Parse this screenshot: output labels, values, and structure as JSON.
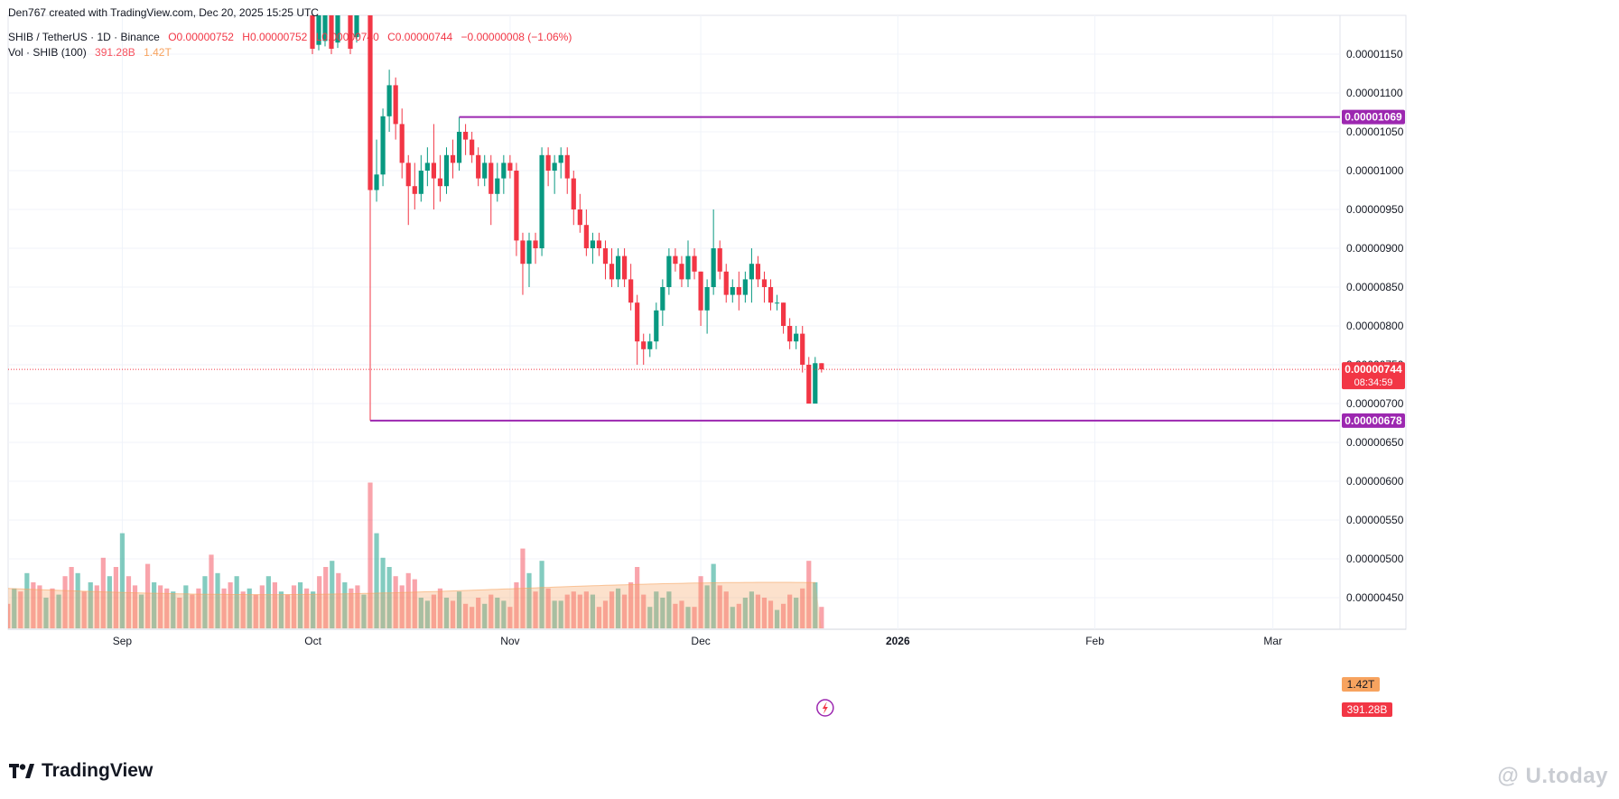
{
  "header": {
    "credit": "Den767 created with TradingView.com, Dec 20, 2025 15:25 UTC",
    "symbol": "SHIB / TetherUS · 1D · Binance",
    "open": "O0.00000752",
    "high": "H0.00000752",
    "low": "L0.00000740",
    "close": "C0.00000744",
    "change": "−0.00000008 (−1.06%)",
    "vol_label": "Vol · SHIB (100)",
    "vol_value": "391.28B",
    "vol_ma": "1.42T"
  },
  "branding": {
    "logo_text": "TradingView",
    "watermark": "@ U.today"
  },
  "colors": {
    "up": "#089981",
    "down": "#f23645",
    "level": "#9c27b0",
    "grid": "#f0f3fa",
    "vol_ma": "#f7a35f"
  },
  "chart_data": {
    "type": "candlestick",
    "symbol": "SHIB/USDT",
    "interval": "1D",
    "y_axis": {
      "min": 4.5e-06,
      "max": 1.15e-05,
      "ticks": [
        "0.00000450",
        "0.00000500",
        "0.00000550",
        "0.00000600",
        "0.00000650",
        "0.00000700",
        "0.00000750",
        "0.00000800",
        "0.00000850",
        "0.00000900",
        "0.00000950",
        "0.00001000",
        "0.00001050",
        "0.00001100",
        "0.00001150"
      ],
      "scale": "linear",
      "position": "right"
    },
    "x_axis": {
      "labels": [
        {
          "label": "Sep",
          "date": "2025-09-01"
        },
        {
          "label": "Oct",
          "date": "2025-10-01"
        },
        {
          "label": "Nov",
          "date": "2025-11-01"
        },
        {
          "label": "Dec",
          "date": "2025-12-01"
        },
        {
          "label": "2026",
          "date": "2026-01-01"
        },
        {
          "label": "Feb",
          "date": "2026-02-01"
        },
        {
          "label": "Mar",
          "date": "2026-03-01"
        }
      ]
    },
    "horizontal_levels": [
      {
        "value": 1.069e-05,
        "label": "0.00001069",
        "from_date": "2025-10-24"
      },
      {
        "value": 6.78e-06,
        "label": "0.00000678",
        "from_date": "2025-10-10"
      }
    ],
    "last_price": {
      "value": 7.44e-06,
      "label": "0.00000744",
      "countdown": "08:34:59"
    },
    "volume_badges": {
      "ma": "1.42T",
      "volume": "391.28B"
    },
    "candles": [
      {
        "date": "2025-10-10",
        "o": 1.24e-05,
        "h": 1.25e-05,
        "l": 6.78e-06,
        "c": 9.75e-06,
        "v": 0.95
      },
      {
        "date": "2025-10-11",
        "o": 9.75e-06,
        "h": 1.04e-05,
        "l": 9.6e-06,
        "c": 9.95e-06,
        "v": 0.62
      },
      {
        "date": "2025-10-12",
        "o": 9.95e-06,
        "h": 1.08e-05,
        "l": 9.8e-06,
        "c": 1.07e-05,
        "v": 0.46
      },
      {
        "date": "2025-10-13",
        "o": 1.07e-05,
        "h": 1.13e-05,
        "l": 1.05e-05,
        "c": 1.11e-05,
        "v": 0.4
      },
      {
        "date": "2025-10-14",
        "o": 1.11e-05,
        "h": 1.12e-05,
        "l": 1.04e-05,
        "c": 1.06e-05,
        "v": 0.34
      },
      {
        "date": "2025-10-15",
        "o": 1.06e-05,
        "h": 1.08e-05,
        "l": 9.9e-06,
        "c": 1.01e-05,
        "v": 0.28
      },
      {
        "date": "2025-10-16",
        "o": 1.01e-05,
        "h": 1.02e-05,
        "l": 9.3e-06,
        "c": 9.8e-06,
        "v": 0.36
      },
      {
        "date": "2025-10-17",
        "o": 9.8e-06,
        "h": 1.01e-05,
        "l": 9.5e-06,
        "c": 9.7e-06,
        "v": 0.32
      },
      {
        "date": "2025-10-18",
        "o": 9.7e-06,
        "h": 1.02e-05,
        "l": 9.6e-06,
        "c": 1e-05,
        "v": 0.2
      },
      {
        "date": "2025-10-19",
        "o": 1e-05,
        "h": 1.03e-05,
        "l": 9.8e-06,
        "c": 1.01e-05,
        "v": 0.18
      },
      {
        "date": "2025-10-20",
        "o": 1.01e-05,
        "h": 1.06e-05,
        "l": 9.5e-06,
        "c": 9.9e-06,
        "v": 0.22
      },
      {
        "date": "2025-10-21",
        "o": 9.9e-06,
        "h": 1.02e-05,
        "l": 9.6e-06,
        "c": 9.8e-06,
        "v": 0.26
      },
      {
        "date": "2025-10-22",
        "o": 9.8e-06,
        "h": 1.03e-05,
        "l": 9.7e-06,
        "c": 1.02e-05,
        "v": 0.2
      },
      {
        "date": "2025-10-23",
        "o": 1.02e-05,
        "h": 1.04e-05,
        "l": 9.9e-06,
        "c": 1.01e-05,
        "v": 0.18
      },
      {
        "date": "2025-10-24",
        "o": 1.01e-05,
        "h": 1.069e-05,
        "l": 1e-05,
        "c": 1.05e-05,
        "v": 0.24
      },
      {
        "date": "2025-10-25",
        "o": 1.05e-05,
        "h": 1.06e-05,
        "l": 1.02e-05,
        "c": 1.04e-05,
        "v": 0.16
      },
      {
        "date": "2025-10-26",
        "o": 1.04e-05,
        "h": 1.05e-05,
        "l": 1.01e-05,
        "c": 1.02e-05,
        "v": 0.14
      },
      {
        "date": "2025-10-27",
        "o": 1.02e-05,
        "h": 1.03e-05,
        "l": 9.8e-06,
        "c": 9.9e-06,
        "v": 0.2
      },
      {
        "date": "2025-10-28",
        "o": 9.9e-06,
        "h": 1.02e-05,
        "l": 9.8e-06,
        "c": 1.01e-05,
        "v": 0.16
      },
      {
        "date": "2025-10-29",
        "o": 1.01e-05,
        "h": 1.02e-05,
        "l": 9.3e-06,
        "c": 9.7e-06,
        "v": 0.22
      },
      {
        "date": "2025-10-30",
        "o": 9.7e-06,
        "h": 1.01e-05,
        "l": 9.6e-06,
        "c": 9.9e-06,
        "v": 0.2
      },
      {
        "date": "2025-10-31",
        "o": 9.9e-06,
        "h": 1.02e-05,
        "l": 9.7e-06,
        "c": 1.01e-05,
        "v": 0.18
      },
      {
        "date": "2025-11-01",
        "o": 1.01e-05,
        "h": 1.02e-05,
        "l": 9.9e-06,
        "c": 1e-05,
        "v": 0.14
      },
      {
        "date": "2025-11-02",
        "o": 1e-05,
        "h": 1.01e-05,
        "l": 8.9e-06,
        "c": 9.1e-06,
        "v": 0.3
      },
      {
        "date": "2025-11-03",
        "o": 9.1e-06,
        "h": 9.2e-06,
        "l": 8.4e-06,
        "c": 8.8e-06,
        "v": 0.52
      },
      {
        "date": "2025-11-04",
        "o": 8.8e-06,
        "h": 9.2e-06,
        "l": 8.5e-06,
        "c": 9.1e-06,
        "v": 0.36
      },
      {
        "date": "2025-11-05",
        "o": 9.1e-06,
        "h": 9.2e-06,
        "l": 8.8e-06,
        "c": 9e-06,
        "v": 0.24
      },
      {
        "date": "2025-11-06",
        "o": 9e-06,
        "h": 1.03e-05,
        "l": 8.9e-06,
        "c": 1.02e-05,
        "v": 0.44
      },
      {
        "date": "2025-11-07",
        "o": 1.02e-05,
        "h": 1.03e-05,
        "l": 9.8e-06,
        "c": 1e-05,
        "v": 0.26
      },
      {
        "date": "2025-11-08",
        "o": 1e-05,
        "h": 1.02e-05,
        "l": 9.7e-06,
        "c": 1.01e-05,
        "v": 0.18
      },
      {
        "date": "2025-11-09",
        "o": 1.01e-05,
        "h": 1.03e-05,
        "l": 9.9e-06,
        "c": 1.02e-05,
        "v": 0.18
      },
      {
        "date": "2025-11-10",
        "o": 1.02e-05,
        "h": 1.03e-05,
        "l": 9.7e-06,
        "c": 9.9e-06,
        "v": 0.22
      },
      {
        "date": "2025-11-11",
        "o": 9.9e-06,
        "h": 1e-05,
        "l": 9.3e-06,
        "c": 9.5e-06,
        "v": 0.24
      },
      {
        "date": "2025-11-12",
        "o": 9.5e-06,
        "h": 9.7e-06,
        "l": 9.2e-06,
        "c": 9.3e-06,
        "v": 0.22
      },
      {
        "date": "2025-11-13",
        "o": 9.3e-06,
        "h": 9.5e-06,
        "l": 8.9e-06,
        "c": 9e-06,
        "v": 0.24
      },
      {
        "date": "2025-11-14",
        "o": 9e-06,
        "h": 9.2e-06,
        "l": 8.8e-06,
        "c": 9.1e-06,
        "v": 0.22
      },
      {
        "date": "2025-11-15",
        "o": 9.1e-06,
        "h": 9.2e-06,
        "l": 8.9e-06,
        "c": 9e-06,
        "v": 0.14
      },
      {
        "date": "2025-11-16",
        "o": 9e-06,
        "h": 9.1e-06,
        "l": 8.6e-06,
        "c": 8.8e-06,
        "v": 0.18
      },
      {
        "date": "2025-11-17",
        "o": 8.8e-06,
        "h": 9e-06,
        "l": 8.5e-06,
        "c": 8.6e-06,
        "v": 0.24
      },
      {
        "date": "2025-11-18",
        "o": 8.6e-06,
        "h": 9e-06,
        "l": 8.5e-06,
        "c": 8.9e-06,
        "v": 0.26
      },
      {
        "date": "2025-11-19",
        "o": 8.9e-06,
        "h": 9e-06,
        "l": 8.5e-06,
        "c": 8.6e-06,
        "v": 0.22
      },
      {
        "date": "2025-11-20",
        "o": 8.6e-06,
        "h": 8.8e-06,
        "l": 8.2e-06,
        "c": 8.3e-06,
        "v": 0.3
      },
      {
        "date": "2025-11-21",
        "o": 8.3e-06,
        "h": 8.4e-06,
        "l": 7.5e-06,
        "c": 7.8e-06,
        "v": 0.4
      },
      {
        "date": "2025-11-22",
        "o": 7.8e-06,
        "h": 7.9e-06,
        "l": 7.5e-06,
        "c": 7.7e-06,
        "v": 0.22
      },
      {
        "date": "2025-11-23",
        "o": 7.7e-06,
        "h": 7.9e-06,
        "l": 7.6e-06,
        "c": 7.8e-06,
        "v": 0.14
      },
      {
        "date": "2025-11-24",
        "o": 7.8e-06,
        "h": 8.3e-06,
        "l": 7.7e-06,
        "c": 8.2e-06,
        "v": 0.24
      },
      {
        "date": "2025-11-25",
        "o": 8.2e-06,
        "h": 8.6e-06,
        "l": 8e-06,
        "c": 8.5e-06,
        "v": 0.2
      },
      {
        "date": "2025-11-26",
        "o": 8.5e-06,
        "h": 9e-06,
        "l": 8.4e-06,
        "c": 8.9e-06,
        "v": 0.24
      },
      {
        "date": "2025-11-27",
        "o": 8.9e-06,
        "h": 9e-06,
        "l": 8.7e-06,
        "c": 8.8e-06,
        "v": 0.16
      },
      {
        "date": "2025-11-28",
        "o": 8.8e-06,
        "h": 8.9e-06,
        "l": 8.5e-06,
        "c": 8.6e-06,
        "v": 0.18
      },
      {
        "date": "2025-11-29",
        "o": 8.6e-06,
        "h": 9.1e-06,
        "l": 8.5e-06,
        "c": 8.9e-06,
        "v": 0.14
      },
      {
        "date": "2025-11-30",
        "o": 8.9e-06,
        "h": 9e-06,
        "l": 8.6e-06,
        "c": 8.7e-06,
        "v": 0.14
      },
      {
        "date": "2025-12-01",
        "o": 8.7e-06,
        "h": 8.7e-06,
        "l": 8e-06,
        "c": 8.2e-06,
        "v": 0.34
      },
      {
        "date": "2025-12-02",
        "o": 8.2e-06,
        "h": 8.6e-06,
        "l": 7.9e-06,
        "c": 8.5e-06,
        "v": 0.28
      },
      {
        "date": "2025-12-03",
        "o": 8.5e-06,
        "h": 9.5e-06,
        "l": 8.4e-06,
        "c": 9e-06,
        "v": 0.42
      },
      {
        "date": "2025-12-04",
        "o": 9e-06,
        "h": 9.1e-06,
        "l": 8.6e-06,
        "c": 8.7e-06,
        "v": 0.28
      },
      {
        "date": "2025-12-05",
        "o": 8.7e-06,
        "h": 8.8e-06,
        "l": 8.3e-06,
        "c": 8.4e-06,
        "v": 0.24
      },
      {
        "date": "2025-12-06",
        "o": 8.4e-06,
        "h": 8.6e-06,
        "l": 8.3e-06,
        "c": 8.5e-06,
        "v": 0.14
      },
      {
        "date": "2025-12-07",
        "o": 8.5e-06,
        "h": 8.7e-06,
        "l": 8.2e-06,
        "c": 8.4e-06,
        "v": 0.16
      },
      {
        "date": "2025-12-08",
        "o": 8.4e-06,
        "h": 8.7e-06,
        "l": 8.3e-06,
        "c": 8.6e-06,
        "v": 0.2
      },
      {
        "date": "2025-12-09",
        "o": 8.6e-06,
        "h": 9e-06,
        "l": 8.3e-06,
        "c": 8.8e-06,
        "v": 0.24
      },
      {
        "date": "2025-12-10",
        "o": 8.8e-06,
        "h": 8.9e-06,
        "l": 8.5e-06,
        "c": 8.6e-06,
        "v": 0.22
      },
      {
        "date": "2025-12-11",
        "o": 8.6e-06,
        "h": 8.7e-06,
        "l": 8.3e-06,
        "c": 8.5e-06,
        "v": 0.2
      },
      {
        "date": "2025-12-12",
        "o": 8.5e-06,
        "h": 8.6e-06,
        "l": 8.2e-06,
        "c": 8.3e-06,
        "v": 0.18
      },
      {
        "date": "2025-12-13",
        "o": 8.3e-06,
        "h": 8.4e-06,
        "l": 8.2e-06,
        "c": 8.3e-06,
        "v": 0.12
      },
      {
        "date": "2025-12-14",
        "o": 8.3e-06,
        "h": 8.3e-06,
        "l": 7.9e-06,
        "c": 8e-06,
        "v": 0.16
      },
      {
        "date": "2025-12-15",
        "o": 8e-06,
        "h": 8.1e-06,
        "l": 7.7e-06,
        "c": 7.8e-06,
        "v": 0.22
      },
      {
        "date": "2025-12-16",
        "o": 7.8e-06,
        "h": 8e-06,
        "l": 7.7e-06,
        "c": 7.9e-06,
        "v": 0.2
      },
      {
        "date": "2025-12-17",
        "o": 7.9e-06,
        "h": 8e-06,
        "l": 7.4e-06,
        "c": 7.5e-06,
        "v": 0.26
      },
      {
        "date": "2025-12-18",
        "o": 7.5e-06,
        "h": 7.6e-06,
        "l": 7e-06,
        "c": 7e-06,
        "v": 0.44
      },
      {
        "date": "2025-12-19",
        "o": 7e-06,
        "h": 7.6e-06,
        "l": 7e-06,
        "c": 7.52e-06,
        "v": 0.3
      },
      {
        "date": "2025-12-20",
        "o": 7.52e-06,
        "h": 7.52e-06,
        "l": 7.4e-06,
        "c": 7.44e-06,
        "v": 0.14
      }
    ]
  }
}
